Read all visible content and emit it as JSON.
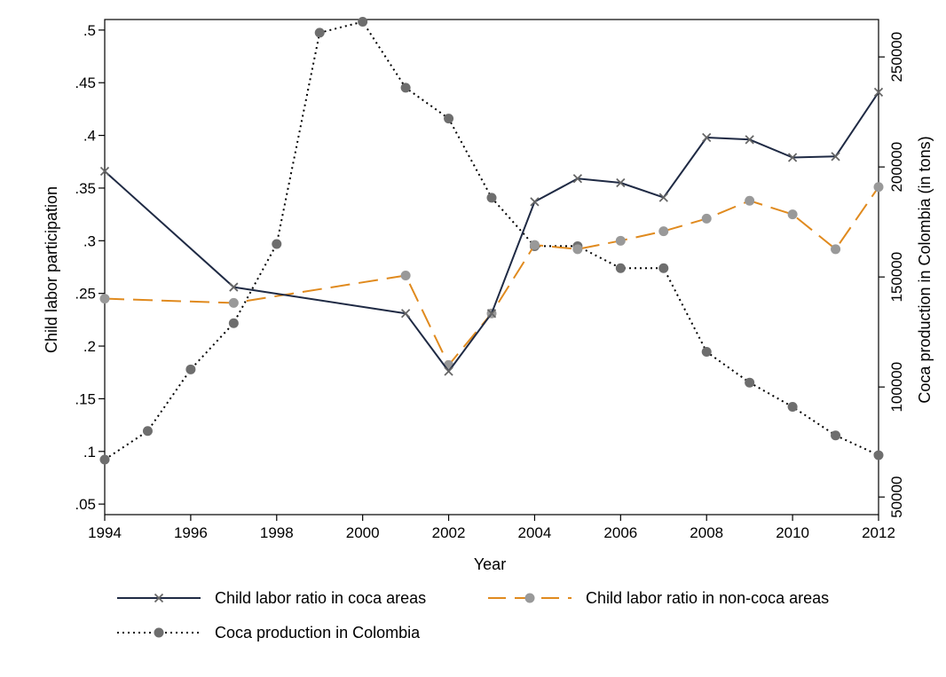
{
  "chart_data": {
    "type": "line",
    "title": "",
    "xlabel": "Year",
    "ylabel": "Child labor participation",
    "y2label": "Coca production in Colombia (in tons)",
    "xlim": [
      1994,
      2012
    ],
    "ylim": [
      0.04,
      0.51
    ],
    "y2lim": [
      42000,
      267000
    ],
    "xticks": [
      1994,
      1996,
      1998,
      2000,
      2002,
      2004,
      2006,
      2008,
      2010,
      2012
    ],
    "xtick_labels": [
      "1994",
      "1996",
      "1998",
      "2000",
      "2002",
      "2004",
      "2006",
      "2008",
      "2010",
      "2012"
    ],
    "yticks": [
      0.05,
      0.1,
      0.15,
      0.2,
      0.25,
      0.3,
      0.35,
      0.4,
      0.45,
      0.5
    ],
    "ytick_labels": [
      ".05",
      ".1",
      ".15",
      ".2",
      ".25",
      ".3",
      ".35",
      ".4",
      ".45",
      ".5"
    ],
    "y2ticks": [
      50000,
      100000,
      150000,
      200000,
      250000
    ],
    "y2tick_labels": [
      "50000",
      "100000",
      "150000",
      "200000",
      "250000"
    ],
    "grid": false,
    "legend_position": "bottom",
    "series": [
      {
        "name": "Child labor ratio in coca areas",
        "axis": "left",
        "marker": "x",
        "line": "solid",
        "color": "#1f2a44",
        "marker_color": "#666666",
        "x": [
          1994,
          1997,
          2001,
          2002,
          2003,
          2004,
          2005,
          2006,
          2007,
          2008,
          2009,
          2010,
          2011,
          2012
        ],
        "y": [
          0.366,
          0.256,
          0.231,
          0.176,
          0.231,
          0.337,
          0.359,
          0.355,
          0.341,
          0.398,
          0.396,
          0.379,
          0.38,
          0.441
        ]
      },
      {
        "name": "Child labor ratio in non-coca areas",
        "axis": "left",
        "marker": "circle",
        "line": "dashed",
        "color": "#e08a1e",
        "marker_color": "#999999",
        "x": [
          1994,
          1997,
          2001,
          2002,
          2003,
          2004,
          2005,
          2006,
          2007,
          2008,
          2009,
          2010,
          2011,
          2012
        ],
        "y": [
          0.245,
          0.241,
          0.267,
          0.182,
          0.231,
          0.296,
          0.292,
          0.3,
          0.309,
          0.321,
          0.338,
          0.325,
          0.292,
          0.351
        ]
      },
      {
        "name": "Coca production in Colombia",
        "axis": "right",
        "marker": "circle",
        "line": "dotted",
        "color": "#000000",
        "marker_color": "#6e6e6e",
        "x": [
          1994,
          1995,
          1996,
          1997,
          1998,
          1999,
          2000,
          2001,
          2002,
          2003,
          2004,
          2005,
          2006,
          2007,
          2008,
          2009,
          2010,
          2011,
          2012
        ],
        "y": [
          67000,
          80000,
          108000,
          129000,
          165000,
          261000,
          266000,
          236000,
          222000,
          186000,
          164000,
          164000,
          154000,
          154000,
          116000,
          102000,
          91000,
          78000,
          69000
        ]
      }
    ]
  }
}
